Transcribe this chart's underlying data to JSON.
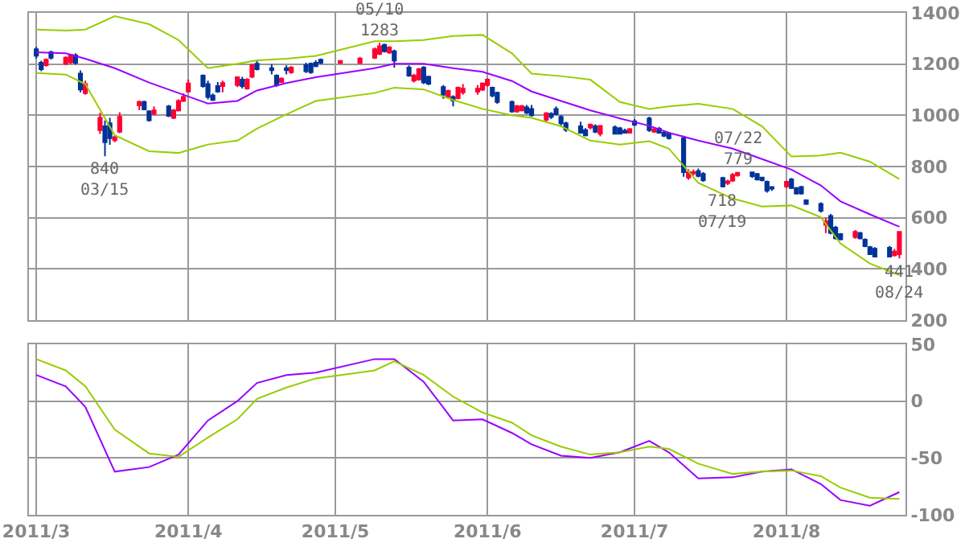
{
  "chart_data": [
    {
      "type": "candlestick",
      "grid": true,
      "tick_labels": "y",
      "x": [
        "2011-03-01",
        "2011-03-02",
        "2011-03-03",
        "2011-03-04",
        "2011-03-07",
        "2011-03-08",
        "2011-03-09",
        "2011-03-10",
        "2011-03-11",
        "2011-03-14",
        "2011-03-15",
        "2011-03-16",
        "2011-03-17",
        "2011-03-18",
        "2011-03-22",
        "2011-03-23",
        "2011-03-24",
        "2011-03-25",
        "2011-03-28",
        "2011-03-29",
        "2011-03-30",
        "2011-03-31",
        "2011-04-01",
        "2011-04-04",
        "2011-04-05",
        "2011-04-06",
        "2011-04-07",
        "2011-04-08",
        "2011-04-11",
        "2011-04-12",
        "2011-04-13",
        "2011-04-14",
        "2011-04-15",
        "2011-04-18",
        "2011-04-19",
        "2011-04-20",
        "2011-04-21",
        "2011-04-22",
        "2011-04-25",
        "2011-04-26",
        "2011-04-27",
        "2011-04-28",
        "2011-05-02",
        "2011-05-06",
        "2011-05-09",
        "2011-05-10",
        "2011-05-11",
        "2011-05-12",
        "2011-05-13",
        "2011-05-16",
        "2011-05-17",
        "2011-05-18",
        "2011-05-19",
        "2011-05-20",
        "2011-05-23",
        "2011-05-24",
        "2011-05-25",
        "2011-05-26",
        "2011-05-27",
        "2011-05-30",
        "2011-05-31",
        "2011-06-01",
        "2011-06-02",
        "2011-06-03",
        "2011-06-06",
        "2011-06-07",
        "2011-06-08",
        "2011-06-09",
        "2011-06-10",
        "2011-06-13",
        "2011-06-14",
        "2011-06-15",
        "2011-06-16",
        "2011-06-17",
        "2011-06-20",
        "2011-06-21",
        "2011-06-22",
        "2011-06-23",
        "2011-06-24",
        "2011-06-27",
        "2011-06-28",
        "2011-06-29",
        "2011-06-30",
        "2011-07-01",
        "2011-07-04",
        "2011-07-05",
        "2011-07-06",
        "2011-07-07",
        "2011-07-08",
        "2011-07-11",
        "2011-07-12",
        "2011-07-13",
        "2011-07-14",
        "2011-07-15",
        "2011-07-19",
        "2011-07-20",
        "2011-07-21",
        "2011-07-22",
        "2011-07-25",
        "2011-07-26",
        "2011-07-27",
        "2011-07-28",
        "2011-07-29",
        "2011-08-01",
        "2011-08-02",
        "2011-08-03",
        "2011-08-04",
        "2011-08-05",
        "2011-08-08",
        "2011-08-09",
        "2011-08-10",
        "2011-08-11",
        "2011-08-12",
        "2011-08-15",
        "2011-08-16",
        "2011-08-17",
        "2011-08-18",
        "2011-08-19",
        "2011-08-22",
        "2011-08-23",
        "2011-08-24"
      ],
      "ohlc": [
        [
          1258,
          1267,
          1222,
          1233
        ],
        [
          1205,
          1213,
          1172,
          1180
        ],
        [
          1196,
          1222,
          1190,
          1217
        ],
        [
          1246,
          1252,
          1218,
          1225
        ],
        [
          1201,
          1230,
          1196,
          1225
        ],
        [
          1207,
          1240,
          1200,
          1236
        ],
        [
          1234,
          1242,
          1198,
          1205
        ],
        [
          1163,
          1175,
          1090,
          1101
        ],
        [
          1087,
          1135,
          1080,
          1122
        ],
        [
          942,
          1010,
          927,
          990
        ],
        [
          957,
          980,
          840,
          895
        ],
        [
          969,
          990,
          885,
          911
        ],
        [
          903,
          922,
          895,
          915
        ],
        [
          936,
          1012,
          930,
          994
        ],
        [
          1039,
          1058,
          1020,
          1052
        ],
        [
          1052,
          1058,
          1020,
          1023
        ],
        [
          1015,
          1020,
          975,
          981
        ],
        [
          1006,
          1035,
          1000,
          1019
        ],
        [
          1035,
          1040,
          993,
          998
        ],
        [
          990,
          1025,
          985,
          1019
        ],
        [
          1019,
          1062,
          1015,
          1056
        ],
        [
          1056,
          1085,
          1052,
          1072
        ],
        [
          1093,
          1140,
          1088,
          1124
        ],
        [
          1155,
          1160,
          1108,
          1114
        ],
        [
          1122,
          1135,
          1062,
          1072
        ],
        [
          1077,
          1085,
          1056,
          1060
        ],
        [
          1114,
          1130,
          1088,
          1093
        ],
        [
          1114,
          1135,
          1090,
          1126
        ],
        [
          1118,
          1152,
          1110,
          1149
        ],
        [
          1139,
          1150,
          1105,
          1114
        ],
        [
          1105,
          1145,
          1100,
          1139
        ],
        [
          1151,
          1202,
          1145,
          1196
        ],
        [
          1201,
          1215,
          1175,
          1180
        ],
        [
          1184,
          1200,
          1160,
          1176
        ],
        [
          1155,
          1160,
          1112,
          1118
        ],
        [
          1130,
          1148,
          1126,
          1143
        ],
        [
          1184,
          1195,
          1160,
          1176
        ],
        [
          1168,
          1192,
          1162,
          1186
        ],
        [
          1196,
          1205,
          1165,
          1172
        ],
        [
          1201,
          1206,
          1162,
          1168
        ],
        [
          1205,
          1215,
          1188,
          1192
        ],
        [
          1217,
          1222,
          1200,
          1205
        ],
        [
          1205,
          1215,
          1200,
          1212
        ],
        [
          1205,
          1228,
          1200,
          1222
        ],
        [
          1225,
          1265,
          1220,
          1258
        ],
        [
          1240,
          1283,
          1235,
          1270
        ],
        [
          1275,
          1280,
          1245,
          1250
        ],
        [
          1245,
          1270,
          1240,
          1265
        ],
        [
          1250,
          1256,
          1186,
          1214
        ],
        [
          1186,
          1195,
          1150,
          1155
        ],
        [
          1135,
          1162,
          1128,
          1155
        ],
        [
          1140,
          1185,
          1135,
          1180
        ],
        [
          1186,
          1192,
          1122,
          1128
        ],
        [
          1150,
          1155,
          1118,
          1123
        ],
        [
          1110,
          1118,
          1065,
          1080
        ],
        [
          1072,
          1100,
          1065,
          1095
        ],
        [
          1072,
          1078,
          1035,
          1058
        ],
        [
          1067,
          1112,
          1062,
          1108
        ],
        [
          1090,
          1122,
          1080,
          1104
        ],
        [
          1092,
          1118,
          1080,
          1104
        ],
        [
          1100,
          1128,
          1095,
          1124
        ],
        [
          1118,
          1145,
          1112,
          1139
        ],
        [
          1108,
          1112,
          1070,
          1077
        ],
        [
          1088,
          1092,
          1045,
          1052
        ],
        [
          1052,
          1058,
          1010,
          1015
        ],
        [
          1015,
          1040,
          1010,
          1036
        ],
        [
          1019,
          1040,
          1015,
          1036
        ],
        [
          1031,
          1040,
          1005,
          1010
        ],
        [
          1025,
          1040,
          995,
          1000
        ],
        [
          983,
          1012,
          975,
          1008
        ],
        [
          1006,
          1012,
          985,
          994
        ],
        [
          1025,
          1035,
          1000,
          1004
        ],
        [
          994,
          1000,
          960,
          969
        ],
        [
          969,
          975,
          935,
          944
        ],
        [
          957,
          975,
          928,
          932
        ],
        [
          942,
          950,
          918,
          922
        ],
        [
          952,
          968,
          945,
          963
        ],
        [
          957,
          965,
          930,
          936
        ],
        [
          928,
          962,
          918,
          959
        ],
        [
          953,
          960,
          925,
          928
        ],
        [
          949,
          955,
          925,
          928
        ],
        [
          940,
          948,
          930,
          932
        ],
        [
          932,
          950,
          930,
          946
        ],
        [
          977,
          985,
          958,
          963
        ],
        [
          988,
          995,
          935,
          942
        ],
        [
          936,
          950,
          932,
          946
        ],
        [
          948,
          955,
          928,
          932
        ],
        [
          932,
          940,
          915,
          920
        ],
        [
          928,
          935,
          905,
          911
        ],
        [
          911,
          920,
          760,
          778
        ],
        [
          757,
          790,
          748,
          778
        ],
        [
          773,
          788,
          765,
          778
        ],
        [
          782,
          792,
          758,
          763
        ],
        [
          771,
          778,
          740,
          747
        ],
        [
          755,
          760,
          718,
          722
        ],
        [
          736,
          748,
          728,
          742
        ],
        [
          745,
          775,
          740,
          767
        ],
        [
          766,
          779,
          760,
          776
        ],
        [
          777,
          778,
          755,
          762
        ],
        [
          771,
          775,
          745,
          750
        ],
        [
          757,
          760,
          742,
          747
        ],
        [
          740,
          745,
          698,
          706
        ],
        [
          720,
          722,
          705,
          714
        ],
        [
          722,
          745,
          715,
          740
        ],
        [
          750,
          755,
          712,
          716
        ],
        [
          716,
          720,
          690,
          695
        ],
        [
          720,
          725,
          690,
          695
        ],
        [
          668,
          672,
          650,
          654
        ],
        [
          654,
          660,
          620,
          627
        ],
        [
          572,
          600,
          540,
          586
        ],
        [
          607,
          615,
          535,
          541
        ],
        [
          561,
          568,
          515,
          520
        ],
        [
          536,
          540,
          512,
          516
        ],
        [
          524,
          552,
          518,
          545
        ],
        [
          540,
          545,
          515,
          520
        ],
        [
          514,
          520,
          485,
          489
        ],
        [
          485,
          490,
          455,
          458
        ],
        [
          479,
          485,
          446,
          448
        ],
        [
          483,
          490,
          445,
          448
        ],
        [
          454,
          478,
          448,
          468
        ],
        [
          458,
          548,
          441,
          545
        ]
      ],
      "series": [
        {
          "type": "line",
          "color": "#99cc00",
          "x": [
            "2011-03-01",
            "2011-03-07",
            "2011-03-11",
            "2011-03-17",
            "2011-03-24",
            "2011-03-30",
            "2011-04-05",
            "2011-04-11",
            "2011-04-15",
            "2011-04-21",
            "2011-04-27",
            "2011-05-09",
            "2011-05-13",
            "2011-05-19",
            "2011-05-25",
            "2011-05-31",
            "2011-06-06",
            "2011-06-10",
            "2011-06-16",
            "2011-06-22",
            "2011-06-28",
            "2011-07-04",
            "2011-07-08",
            "2011-07-14",
            "2011-07-21",
            "2011-07-27",
            "2011-08-02",
            "2011-08-08",
            "2011-08-12",
            "2011-08-18",
            "2011-08-24"
          ],
          "values": [
            1335,
            1331,
            1335,
            1387,
            1356,
            1294,
            1184,
            1201,
            1215,
            1221,
            1232,
            1289,
            1289,
            1294,
            1310,
            1314,
            1242,
            1163,
            1153,
            1139,
            1052,
            1025,
            1035,
            1045,
            1025,
            957,
            839,
            843,
            854,
            819,
            751
          ]
        },
        {
          "type": "line",
          "color": "#9900ff",
          "x": [
            "2011-03-01",
            "2011-03-07",
            "2011-03-11",
            "2011-03-17",
            "2011-03-24",
            "2011-03-30",
            "2011-04-05",
            "2011-04-11",
            "2011-04-15",
            "2011-04-21",
            "2011-04-27",
            "2011-05-09",
            "2011-05-13",
            "2011-05-19",
            "2011-05-25",
            "2011-05-31",
            "2011-06-06",
            "2011-06-10",
            "2011-06-16",
            "2011-06-22",
            "2011-06-28",
            "2011-07-04",
            "2011-07-08",
            "2011-07-14",
            "2011-07-21",
            "2011-07-27",
            "2011-08-02",
            "2011-08-08",
            "2011-08-12",
            "2011-08-18",
            "2011-08-24"
          ],
          "values": [
            1246,
            1242,
            1221,
            1184,
            1128,
            1087,
            1046,
            1056,
            1097,
            1126,
            1149,
            1184,
            1201,
            1201,
            1184,
            1170,
            1134,
            1093,
            1056,
            1019,
            988,
            959,
            932,
            901,
            870,
            829,
            788,
            726,
            664,
            613,
            565
          ]
        },
        {
          "type": "line",
          "color": "#99cc00",
          "x": [
            "2011-03-01",
            "2011-03-07",
            "2011-03-11",
            "2011-03-17",
            "2011-03-24",
            "2011-03-30",
            "2011-04-05",
            "2011-04-11",
            "2011-04-15",
            "2011-04-21",
            "2011-04-27",
            "2011-05-09",
            "2011-05-13",
            "2011-05-19",
            "2011-05-25",
            "2011-05-31",
            "2011-06-06",
            "2011-06-10",
            "2011-06-16",
            "2011-06-22",
            "2011-06-28",
            "2011-07-04",
            "2011-07-08",
            "2011-07-14",
            "2011-07-21",
            "2011-07-27",
            "2011-08-02",
            "2011-08-08",
            "2011-08-12",
            "2011-08-18",
            "2011-08-24"
          ],
          "values": [
            1165,
            1159,
            1122,
            922,
            860,
            853,
            886,
            901,
            948,
            1004,
            1056,
            1087,
            1108,
            1101,
            1060,
            1025,
            1000,
            990,
            957,
            901,
            886,
            899,
            870,
            736,
            675,
            644,
            648,
            602,
            499,
            421,
            376
          ]
        }
      ],
      "ylim": [
        200,
        1400
      ],
      "yticks": [
        200,
        400,
        600,
        800,
        1000,
        1200,
        1400
      ],
      "xlim": [
        "2011-02-27T12:00",
        "2011-08-25T06:00"
      ],
      "xticks": [
        {
          "value": "2011-03-01",
          "label": null
        },
        {
          "value": "2011-04-01",
          "label": null
        },
        {
          "value": "2011-05-01",
          "label": null
        },
        {
          "value": "2011-06-01",
          "label": null
        },
        {
          "value": "2011-07-01",
          "label": null
        },
        {
          "value": "2011-08-01",
          "label": null
        }
      ],
      "annotations": [
        {
          "text": "840\n03/15",
          "x": "2011-03-15",
          "y": 840
        },
        {
          "text": "05/10\n1283",
          "x": "2011-05-10",
          "y": 1283
        },
        {
          "text": "07/22\n779",
          "x": "2011-07-22",
          "y": 779
        },
        {
          "text": "718\n07/19",
          "x": "2011-07-19",
          "y": 718
        },
        {
          "text": "441\n08/24",
          "x": "2011-08-24",
          "y": 441
        }
      ]
    },
    {
      "type": "line",
      "grid": true,
      "x": [
        "2011-03-01",
        "2011-03-07",
        "2011-03-11",
        "2011-03-17",
        "2011-03-24",
        "2011-03-30",
        "2011-04-05",
        "2011-04-11",
        "2011-04-15",
        "2011-04-21",
        "2011-04-27",
        "2011-05-09",
        "2011-05-13",
        "2011-05-19",
        "2011-05-25",
        "2011-05-31",
        "2011-06-06",
        "2011-06-10",
        "2011-06-16",
        "2011-06-22",
        "2011-06-28",
        "2011-07-04",
        "2011-07-08",
        "2011-07-14",
        "2011-07-21",
        "2011-07-27",
        "2011-08-02",
        "2011-08-08",
        "2011-08-12",
        "2011-08-18",
        "2011-08-24"
      ],
      "series": [
        {
          "color": "#9900ff",
          "values": [
            23,
            13,
            -5,
            -62,
            -58,
            -47,
            -17,
            0,
            16,
            23,
            25,
            37,
            37,
            17,
            -17,
            -16,
            -28,
            -38,
            -48,
            -50,
            -45,
            -35,
            -45,
            -68,
            -67,
            -62,
            -60,
            -73,
            -87,
            -92,
            -80
          ]
        },
        {
          "color": "#99cc00",
          "values": [
            37,
            27,
            13,
            -25,
            -46,
            -49,
            -32,
            -16,
            2,
            12,
            20,
            27,
            35,
            23,
            4,
            -10,
            -19,
            -30,
            -40,
            -47,
            -45,
            -40,
            -42,
            -55,
            -64,
            -62,
            -61,
            -66,
            -76,
            -85,
            -86
          ]
        }
      ],
      "ylim": [
        -100,
        50
      ],
      "yticks": [
        50,
        0,
        -50,
        -100
      ],
      "xlim": [
        "2011-02-27T12:00",
        "2011-08-25T06:00"
      ],
      "xticks": [
        {
          "value": "2011-03-01",
          "label": "2011/3"
        },
        {
          "value": "2011-04-01",
          "label": "2011/4"
        },
        {
          "value": "2011-05-01",
          "label": "2011/5"
        },
        {
          "value": "2011-06-01",
          "label": "2011/6"
        },
        {
          "value": "2011-07-01",
          "label": "2011/7"
        },
        {
          "value": "2011-08-01",
          "label": "2011/8"
        }
      ]
    }
  ]
}
